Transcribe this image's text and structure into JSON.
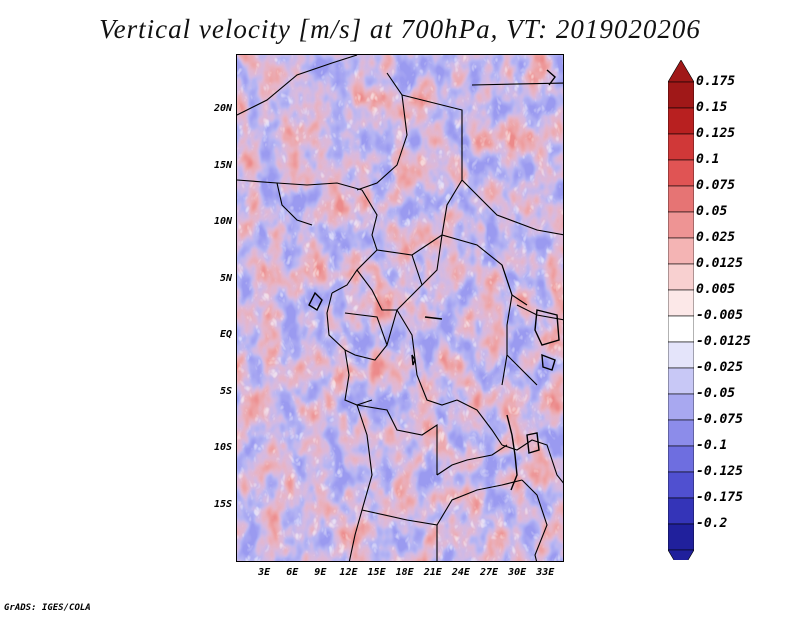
{
  "title": "Vertical velocity [m/s] at 700hPa, VT: 2019020206",
  "footer": "GrADS: IGES/COLA",
  "map": {
    "lon_range": [
      0,
      35
    ],
    "lat_range": [
      -20,
      25
    ],
    "lat_ticks": [
      {
        "value": 20,
        "label": "20N"
      },
      {
        "value": 15,
        "label": "15N"
      },
      {
        "value": 10,
        "label": "10N"
      },
      {
        "value": 5,
        "label": "5N"
      },
      {
        "value": 0,
        "label": "EQ"
      },
      {
        "value": -5,
        "label": "5S"
      },
      {
        "value": -10,
        "label": "10S"
      },
      {
        "value": -15,
        "label": "15S"
      }
    ],
    "lon_ticks": [
      {
        "value": 3,
        "label": "3E"
      },
      {
        "value": 6,
        "label": "6E"
      },
      {
        "value": 9,
        "label": "9E"
      },
      {
        "value": 12,
        "label": "12E"
      },
      {
        "value": 15,
        "label": "15E"
      },
      {
        "value": 18,
        "label": "18E"
      },
      {
        "value": 21,
        "label": "21E"
      },
      {
        "value": 24,
        "label": "24E"
      },
      {
        "value": 27,
        "label": "27E"
      },
      {
        "value": 30,
        "label": "30E"
      },
      {
        "value": 33,
        "label": "33E"
      }
    ]
  },
  "colorbar": {
    "levels": [
      {
        "label": "0.175",
        "color": "#a01818"
      },
      {
        "label": "0.15",
        "color": "#b82020"
      },
      {
        "label": "0.125",
        "color": "#d03838"
      },
      {
        "label": "0.1",
        "color": "#e05454"
      },
      {
        "label": "0.075",
        "color": "#e67474"
      },
      {
        "label": "0.05",
        "color": "#ee9494"
      },
      {
        "label": "0.025",
        "color": "#f4b4b4"
      },
      {
        "label": "0.0125",
        "color": "#f8d0d0"
      },
      {
        "label": "0.005",
        "color": "#fce8e8"
      },
      {
        "label": "-0.005",
        "color": "#ffffff"
      },
      {
        "label": "-0.0125",
        "color": "#e4e4fa"
      },
      {
        "label": "-0.025",
        "color": "#c8c8f6"
      },
      {
        "label": "-0.05",
        "color": "#a8a8f0"
      },
      {
        "label": "-0.075",
        "color": "#8c8cea"
      },
      {
        "label": "-0.1",
        "color": "#6e6ee0"
      },
      {
        "label": "-0.125",
        "color": "#5050d0"
      },
      {
        "label": "-0.175",
        "color": "#3434b8"
      },
      {
        "label": "-0.2",
        "color": "#20209c"
      }
    ],
    "top_color": "#a01818",
    "bottom_color": "#20209c"
  }
}
